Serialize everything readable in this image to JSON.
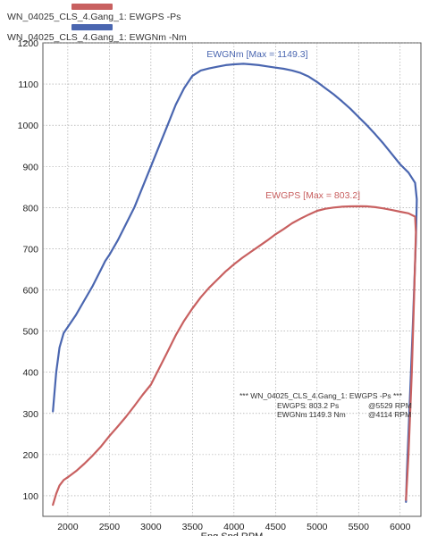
{
  "legend": {
    "items": [
      {
        "label": "WN_04025_CLS_4.Gang_1: EWGPS -Ps",
        "color": "#c86060"
      },
      {
        "label": "WN_04025_CLS_4.Gang_1: EWGNm -Nm",
        "color": "#4a66b0"
      }
    ]
  },
  "stats": {
    "title": "*** WN_04025_CLS_4.Gang_1: EWGPS -Ps ***",
    "rows": [
      {
        "name": "EWGPS",
        "value": ": 803.2 Ps",
        "at": "@5529 RPM"
      },
      {
        "name": "EWGNm",
        "value": ": 1149.3 Nm",
        "at": "@4114 RPM"
      }
    ]
  },
  "chart_data": {
    "type": "line",
    "xlabel": "Eng Spd RPM",
    "xlim": [
      1700,
      6250
    ],
    "ylim": [
      50,
      1200
    ],
    "xticks": [
      2000,
      2500,
      3000,
      3500,
      4000,
      4500,
      5000,
      5500,
      6000
    ],
    "yticks": [
      100,
      200,
      300,
      400,
      500,
      600,
      700,
      800,
      900,
      1000,
      1100,
      1200
    ],
    "grid": true,
    "series": [
      {
        "name": "EWGNm",
        "label": "EWGNm  [Max = 1149.3]",
        "color": "#4a66b0",
        "points": [
          [
            1820,
            305
          ],
          [
            1860,
            400
          ],
          [
            1900,
            460
          ],
          [
            1950,
            495
          ],
          [
            2000,
            510
          ],
          [
            2100,
            540
          ],
          [
            2200,
            575
          ],
          [
            2300,
            610
          ],
          [
            2400,
            650
          ],
          [
            2450,
            670
          ],
          [
            2500,
            685
          ],
          [
            2600,
            720
          ],
          [
            2700,
            760
          ],
          [
            2800,
            800
          ],
          [
            2900,
            850
          ],
          [
            3000,
            900
          ],
          [
            3100,
            950
          ],
          [
            3200,
            1000
          ],
          [
            3300,
            1050
          ],
          [
            3400,
            1090
          ],
          [
            3500,
            1120
          ],
          [
            3600,
            1133
          ],
          [
            3700,
            1138
          ],
          [
            3800,
            1142
          ],
          [
            3900,
            1146
          ],
          [
            4000,
            1148
          ],
          [
            4114,
            1149.3
          ],
          [
            4200,
            1148
          ],
          [
            4300,
            1146
          ],
          [
            4400,
            1143
          ],
          [
            4500,
            1140
          ],
          [
            4600,
            1137
          ],
          [
            4700,
            1133
          ],
          [
            4800,
            1127
          ],
          [
            4900,
            1118
          ],
          [
            5000,
            1105
          ],
          [
            5100,
            1090
          ],
          [
            5200,
            1075
          ],
          [
            5300,
            1058
          ],
          [
            5400,
            1040
          ],
          [
            5500,
            1020
          ],
          [
            5600,
            1000
          ],
          [
            5700,
            978
          ],
          [
            5800,
            955
          ],
          [
            5900,
            930
          ],
          [
            6000,
            905
          ],
          [
            6100,
            885
          ],
          [
            6180,
            860
          ],
          [
            6200,
            820
          ],
          [
            6190,
            720
          ],
          [
            6150,
            500
          ],
          [
            6110,
            300
          ],
          [
            6080,
            150
          ],
          [
            6070,
            85
          ]
        ]
      },
      {
        "name": "EWGPS",
        "label": "EWGPS  [Max = 803.2]",
        "color": "#c86060",
        "points": [
          [
            1820,
            78
          ],
          [
            1860,
            105
          ],
          [
            1900,
            125
          ],
          [
            1950,
            138
          ],
          [
            2000,
            145
          ],
          [
            2100,
            160
          ],
          [
            2200,
            178
          ],
          [
            2300,
            198
          ],
          [
            2400,
            220
          ],
          [
            2500,
            245
          ],
          [
            2600,
            268
          ],
          [
            2700,
            292
          ],
          [
            2800,
            318
          ],
          [
            2900,
            345
          ],
          [
            3000,
            370
          ],
          [
            3100,
            410
          ],
          [
            3200,
            450
          ],
          [
            3300,
            490
          ],
          [
            3400,
            525
          ],
          [
            3500,
            555
          ],
          [
            3600,
            582
          ],
          [
            3700,
            605
          ],
          [
            3800,
            625
          ],
          [
            3900,
            645
          ],
          [
            4000,
            662
          ],
          [
            4100,
            678
          ],
          [
            4200,
            692
          ],
          [
            4300,
            706
          ],
          [
            4400,
            720
          ],
          [
            4500,
            735
          ],
          [
            4600,
            748
          ],
          [
            4700,
            762
          ],
          [
            4800,
            773
          ],
          [
            4900,
            783
          ],
          [
            5000,
            792
          ],
          [
            5100,
            797
          ],
          [
            5200,
            800
          ],
          [
            5300,
            802
          ],
          [
            5400,
            803
          ],
          [
            5529,
            803.2
          ],
          [
            5600,
            803
          ],
          [
            5700,
            801
          ],
          [
            5800,
            798
          ],
          [
            5900,
            794
          ],
          [
            6000,
            790
          ],
          [
            6100,
            786
          ],
          [
            6180,
            778
          ],
          [
            6190,
            740
          ],
          [
            6170,
            600
          ],
          [
            6140,
            400
          ],
          [
            6100,
            200
          ],
          [
            6070,
            90
          ]
        ]
      }
    ]
  }
}
